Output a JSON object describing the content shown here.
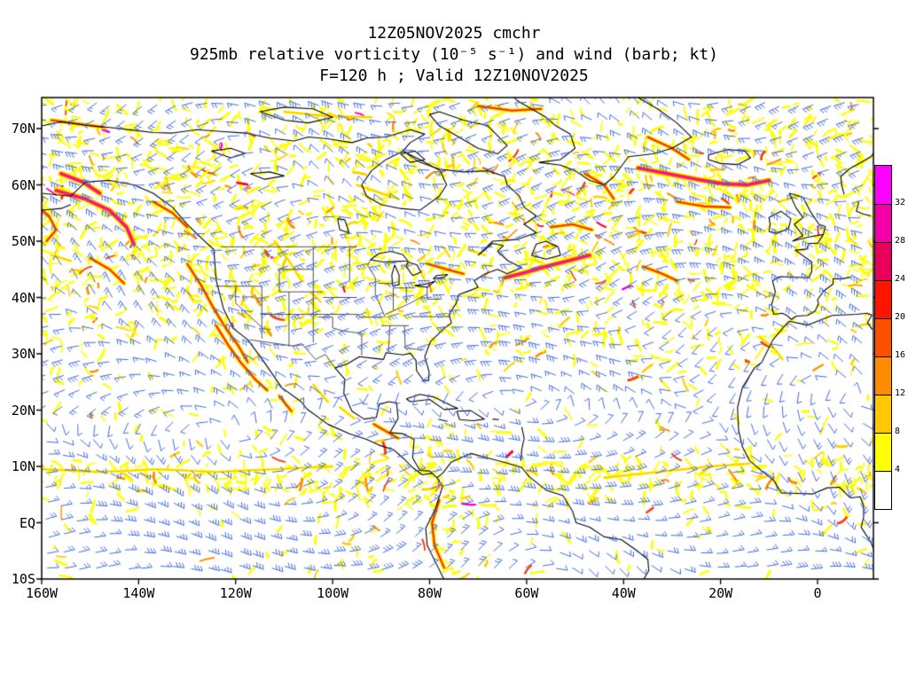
{
  "title": {
    "line1": "12Z05NOV2025 cmchr",
    "line2": "925mb relative vorticity (10⁻⁵ s⁻¹) and wind (barb; kt)",
    "line3": "F=120 h ; Valid 12Z10NOV2025"
  },
  "map": {
    "y_tick_labels": [
      "70N",
      "60N",
      "50N",
      "40N",
      "30N",
      "20N",
      "10N",
      "EQ",
      "10S"
    ],
    "x_tick_labels": [
      "160W",
      "140W",
      "120W",
      "100W",
      "80W",
      "60W",
      "40W",
      "20W",
      "0"
    ],
    "wind_barb_color": "#4169e1",
    "coastline_color": "#000000",
    "background_color": "#ffffff"
  },
  "colorbar": {
    "tick_labels": [
      "32",
      "28",
      "24",
      "20",
      "16",
      "12",
      "8",
      "4"
    ],
    "segment_colors_top_to_bottom": [
      "#ff00ff",
      "#f500a8",
      "#e8005a",
      "#ff1400",
      "#ff5000",
      "#ff8c00",
      "#ffc800",
      "#ffff00",
      "#ffffff"
    ]
  },
  "chart_data": {
    "type": "heatmap",
    "title": "925mb relative vorticity (10⁻⁵ s⁻¹) and wind (barb; kt)",
    "subtitle_run": "12Z05NOV2025 cmchr",
    "subtitle_valid": "F=120 h ; Valid 12Z10NOV2025",
    "x_tick_labels": [
      "160W",
      "140W",
      "120W",
      "100W",
      "80W",
      "60W",
      "40W",
      "20W",
      "0"
    ],
    "y_tick_labels": [
      "70N",
      "60N",
      "50N",
      "40N",
      "30N",
      "20N",
      "10N",
      "EQ",
      "10S"
    ],
    "colorbar_levels_low_to_high": [
      4,
      8,
      12,
      16,
      20,
      24,
      28,
      32
    ],
    "colorbar_colors_low_to_high": [
      "#ffffff",
      "#ffff00",
      "#ffc800",
      "#ff8c00",
      "#ff5000",
      "#ff1400",
      "#e8005a",
      "#f500a8",
      "#ff00ff"
    ],
    "overlay": "wind barbs (kt), blue",
    "legend_position": "right",
    "grid": false
  }
}
